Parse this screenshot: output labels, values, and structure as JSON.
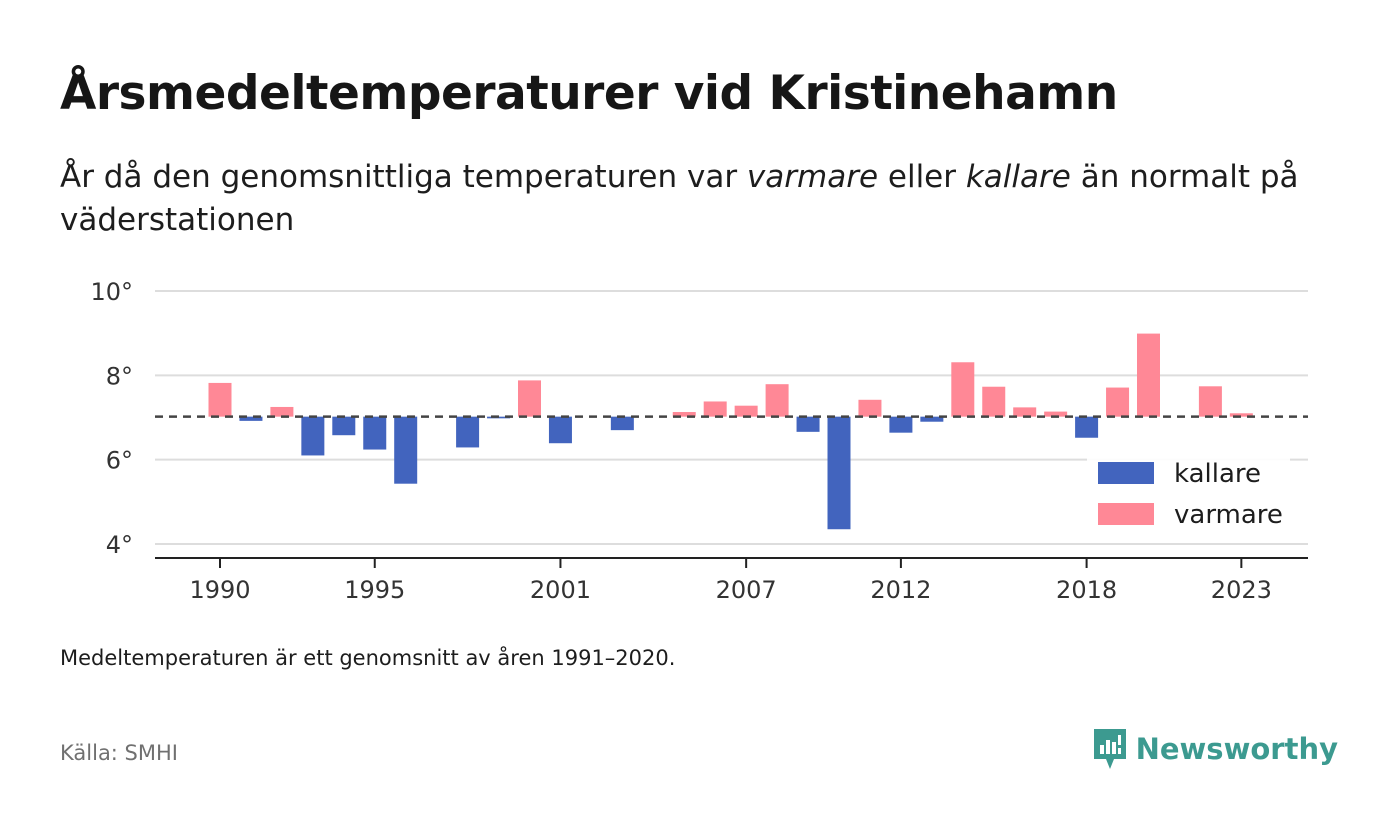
{
  "header": {
    "title": "Årsmedeltemperaturer vid Kristinehamn",
    "subtitle_part1": "År då den genomsnittliga temperaturen var ",
    "subtitle_warm": "varmare",
    "subtitle_part2": " eller ",
    "subtitle_cold": "kallare",
    "subtitle_part3": " än normalt på väderstationen"
  },
  "footer": {
    "note": "Medeltemperaturen är ett genomsnitt av åren 1991–2020.",
    "source": "Källa: SMHI",
    "brand": "Newsworthy"
  },
  "colors": {
    "kallare": "#4264be",
    "varmare": "#ff8896",
    "brand": "#3c9a90",
    "grid": "#dddddd",
    "baseline": "#444444"
  },
  "chart_data": {
    "type": "bar",
    "baseline": 7.02,
    "ylim": [
      3.7,
      10
    ],
    "yticks": [
      4,
      6,
      8,
      10
    ],
    "ytick_labels": [
      "4°",
      "6°",
      "8°",
      "10°"
    ],
    "xticks": [
      1990,
      1995,
      2001,
      2007,
      2012,
      2018,
      2023
    ],
    "xtick_labels": [
      "1990",
      "1995",
      "2001",
      "2007",
      "2012",
      "2018",
      "2023"
    ],
    "legend": {
      "position": "bottom-right",
      "items": [
        {
          "key": "kallare",
          "label": "kallare"
        },
        {
          "key": "varmare",
          "label": "varmare"
        }
      ]
    },
    "years": [
      1990,
      1991,
      1992,
      1993,
      1994,
      1995,
      1996,
      1997,
      1998,
      1999,
      2000,
      2001,
      2002,
      2003,
      2004,
      2005,
      2006,
      2007,
      2008,
      2009,
      2010,
      2011,
      2012,
      2013,
      2014,
      2015,
      2016,
      2017,
      2018,
      2019,
      2020,
      2021,
      2022,
      2023
    ],
    "values": [
      7.82,
      6.92,
      7.25,
      6.1,
      6.58,
      6.24,
      5.43,
      null,
      6.29,
      6.98,
      7.88,
      6.39,
      null,
      6.7,
      null,
      7.13,
      7.38,
      7.28,
      7.79,
      6.66,
      4.35,
      7.42,
      6.64,
      6.9,
      8.31,
      7.73,
      7.24,
      7.14,
      6.52,
      7.71,
      8.99,
      null,
      7.74,
      7.1
    ]
  }
}
